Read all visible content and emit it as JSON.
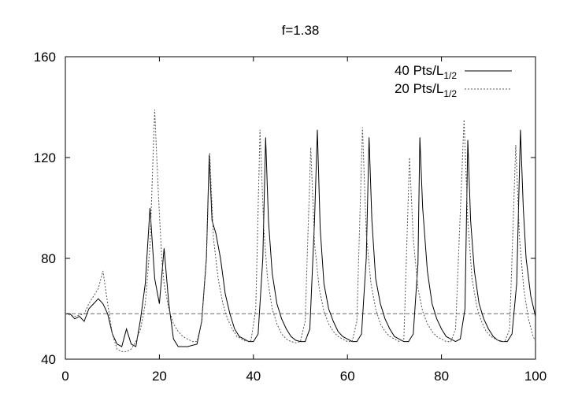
{
  "chart_data": {
    "type": "line",
    "title": "f=1.38",
    "xlabel": "",
    "ylabel": "",
    "xlim": [
      0,
      100
    ],
    "ylim": [
      40,
      160
    ],
    "x_ticks": [
      "0",
      "20",
      "40",
      "60",
      "80",
      "100"
    ],
    "y_ticks": [
      "40",
      "80",
      "120",
      "160"
    ],
    "legend_position": "top-right",
    "reference_line": {
      "y": 58,
      "style": "dashed",
      "color": "#888888"
    },
    "series": [
      {
        "name": "40 Pts/L",
        "name_subscript": "1/2",
        "style": "solid",
        "color": "#000000",
        "points": [
          [
            0,
            58
          ],
          [
            1,
            58
          ],
          [
            2,
            56
          ],
          [
            3,
            57
          ],
          [
            4,
            55
          ],
          [
            5,
            60
          ],
          [
            6,
            62
          ],
          [
            7,
            64
          ],
          [
            8,
            62
          ],
          [
            9,
            58
          ],
          [
            10,
            50
          ],
          [
            11,
            46
          ],
          [
            12,
            45
          ],
          [
            13,
            52
          ],
          [
            14,
            46
          ],
          [
            15,
            45
          ],
          [
            16,
            56
          ],
          [
            17,
            70
          ],
          [
            18,
            100
          ],
          [
            19,
            72
          ],
          [
            20,
            62
          ],
          [
            21,
            84
          ],
          [
            22,
            62
          ],
          [
            23,
            48
          ],
          [
            24,
            45
          ],
          [
            26,
            45
          ],
          [
            28,
            46
          ],
          [
            29,
            55
          ],
          [
            30,
            80
          ],
          [
            30.6,
            121
          ],
          [
            31.2,
            95
          ],
          [
            32,
            90
          ],
          [
            33,
            80
          ],
          [
            34,
            66
          ],
          [
            35,
            58
          ],
          [
            36,
            52
          ],
          [
            37,
            49
          ],
          [
            38,
            48
          ],
          [
            39,
            47
          ],
          [
            40,
            47
          ],
          [
            41,
            50
          ],
          [
            42,
            80
          ],
          [
            42.6,
            128
          ],
          [
            43.2,
            95
          ],
          [
            44,
            74
          ],
          [
            45,
            62
          ],
          [
            46,
            56
          ],
          [
            47,
            52
          ],
          [
            48,
            49
          ],
          [
            49,
            47.5
          ],
          [
            50,
            47
          ],
          [
            51,
            47
          ],
          [
            52,
            52
          ],
          [
            53,
            95
          ],
          [
            53.6,
            131
          ],
          [
            54.2,
            92
          ],
          [
            55,
            70
          ],
          [
            56,
            60
          ],
          [
            57,
            55
          ],
          [
            58,
            51
          ],
          [
            59,
            49
          ],
          [
            60,
            48
          ],
          [
            61,
            47
          ],
          [
            62,
            47
          ],
          [
            63,
            50
          ],
          [
            64,
            80
          ],
          [
            64.6,
            128
          ],
          [
            65.2,
            95
          ],
          [
            66,
            72
          ],
          [
            67,
            62
          ],
          [
            68,
            56
          ],
          [
            69,
            52
          ],
          [
            70,
            49
          ],
          [
            71,
            48
          ],
          [
            72,
            47
          ],
          [
            73,
            47
          ],
          [
            74,
            50
          ],
          [
            75,
            78
          ],
          [
            75.4,
            128
          ],
          [
            76,
            100
          ],
          [
            77,
            75
          ],
          [
            78,
            62
          ],
          [
            79,
            56
          ],
          [
            80,
            52
          ],
          [
            81,
            49
          ],
          [
            82,
            48
          ],
          [
            83,
            47
          ],
          [
            84,
            48
          ],
          [
            85,
            60
          ],
          [
            85.6,
            127
          ],
          [
            86.2,
            95
          ],
          [
            87,
            75
          ],
          [
            88,
            62
          ],
          [
            89,
            56
          ],
          [
            90,
            52
          ],
          [
            91,
            49
          ],
          [
            92,
            47.5
          ],
          [
            93,
            47
          ],
          [
            94,
            47
          ],
          [
            95,
            50
          ],
          [
            96,
            70
          ],
          [
            96.8,
            131
          ],
          [
            97.4,
            100
          ],
          [
            98,
            80
          ],
          [
            99,
            65
          ],
          [
            100,
            57
          ]
        ]
      },
      {
        "name": "20 Pts/L",
        "name_subscript": "1/2",
        "style": "dotted",
        "color": "#555555",
        "points": [
          [
            0,
            58
          ],
          [
            2,
            57
          ],
          [
            4,
            58
          ],
          [
            5,
            62
          ],
          [
            6,
            65
          ],
          [
            7,
            68
          ],
          [
            8,
            75
          ],
          [
            9,
            62
          ],
          [
            10,
            50
          ],
          [
            11,
            44
          ],
          [
            12,
            43
          ],
          [
            13,
            43
          ],
          [
            14,
            44
          ],
          [
            15,
            47
          ],
          [
            16,
            52
          ],
          [
            17,
            62
          ],
          [
            18,
            85
          ],
          [
            19,
            139
          ],
          [
            19.8,
            105
          ],
          [
            20.5,
            80
          ],
          [
            21,
            70
          ],
          [
            22,
            60
          ],
          [
            23,
            54
          ],
          [
            24,
            51
          ],
          [
            25,
            49
          ],
          [
            26,
            48
          ],
          [
            27,
            47
          ],
          [
            28,
            47
          ],
          [
            29,
            55
          ],
          [
            30,
            80
          ],
          [
            30.7,
            122
          ],
          [
            31.5,
            88
          ],
          [
            32.5,
            72
          ],
          [
            33.5,
            62
          ],
          [
            34.5,
            56
          ],
          [
            35.5,
            52
          ],
          [
            36.5,
            49
          ],
          [
            37.5,
            48
          ],
          [
            38.5,
            47
          ],
          [
            39.5,
            47.5
          ],
          [
            40.5,
            60
          ],
          [
            41.4,
            131
          ],
          [
            42.2,
            92
          ],
          [
            43,
            72
          ],
          [
            44,
            60
          ],
          [
            45,
            54
          ],
          [
            46,
            50
          ],
          [
            47,
            48
          ],
          [
            48,
            47
          ],
          [
            49,
            46.5
          ],
          [
            50,
            47
          ],
          [
            51,
            55
          ],
          [
            52.2,
            124
          ],
          [
            53,
            86
          ],
          [
            54,
            68
          ],
          [
            55,
            59
          ],
          [
            56,
            54
          ],
          [
            57,
            51
          ],
          [
            58,
            49
          ],
          [
            59,
            48
          ],
          [
            60,
            47
          ],
          [
            61,
            47
          ],
          [
            62,
            55
          ],
          [
            63.2,
            132
          ],
          [
            64,
            90
          ],
          [
            65,
            70
          ],
          [
            66,
            60
          ],
          [
            67,
            54
          ],
          [
            68,
            51
          ],
          [
            69,
            49
          ],
          [
            70,
            48
          ],
          [
            71,
            47
          ],
          [
            72,
            48
          ],
          [
            73.2,
            120
          ],
          [
            74,
            88
          ],
          [
            75,
            68
          ],
          [
            76,
            59
          ],
          [
            77,
            54
          ],
          [
            78,
            51
          ],
          [
            79,
            49
          ],
          [
            80,
            48
          ],
          [
            81,
            47
          ],
          [
            82,
            47
          ],
          [
            83,
            52
          ],
          [
            84.8,
            135
          ],
          [
            85.6,
            95
          ],
          [
            86.5,
            72
          ],
          [
            87.5,
            61
          ],
          [
            88.5,
            55
          ],
          [
            89.5,
            51
          ],
          [
            90.5,
            49
          ],
          [
            91.5,
            48
          ],
          [
            92.5,
            47
          ],
          [
            93.5,
            47
          ],
          [
            94.5,
            52
          ],
          [
            95.8,
            125
          ],
          [
            96.6,
            88
          ],
          [
            97.5,
            68
          ],
          [
            98.5,
            56
          ],
          [
            99.5,
            49
          ],
          [
            100,
            47
          ]
        ]
      }
    ]
  }
}
